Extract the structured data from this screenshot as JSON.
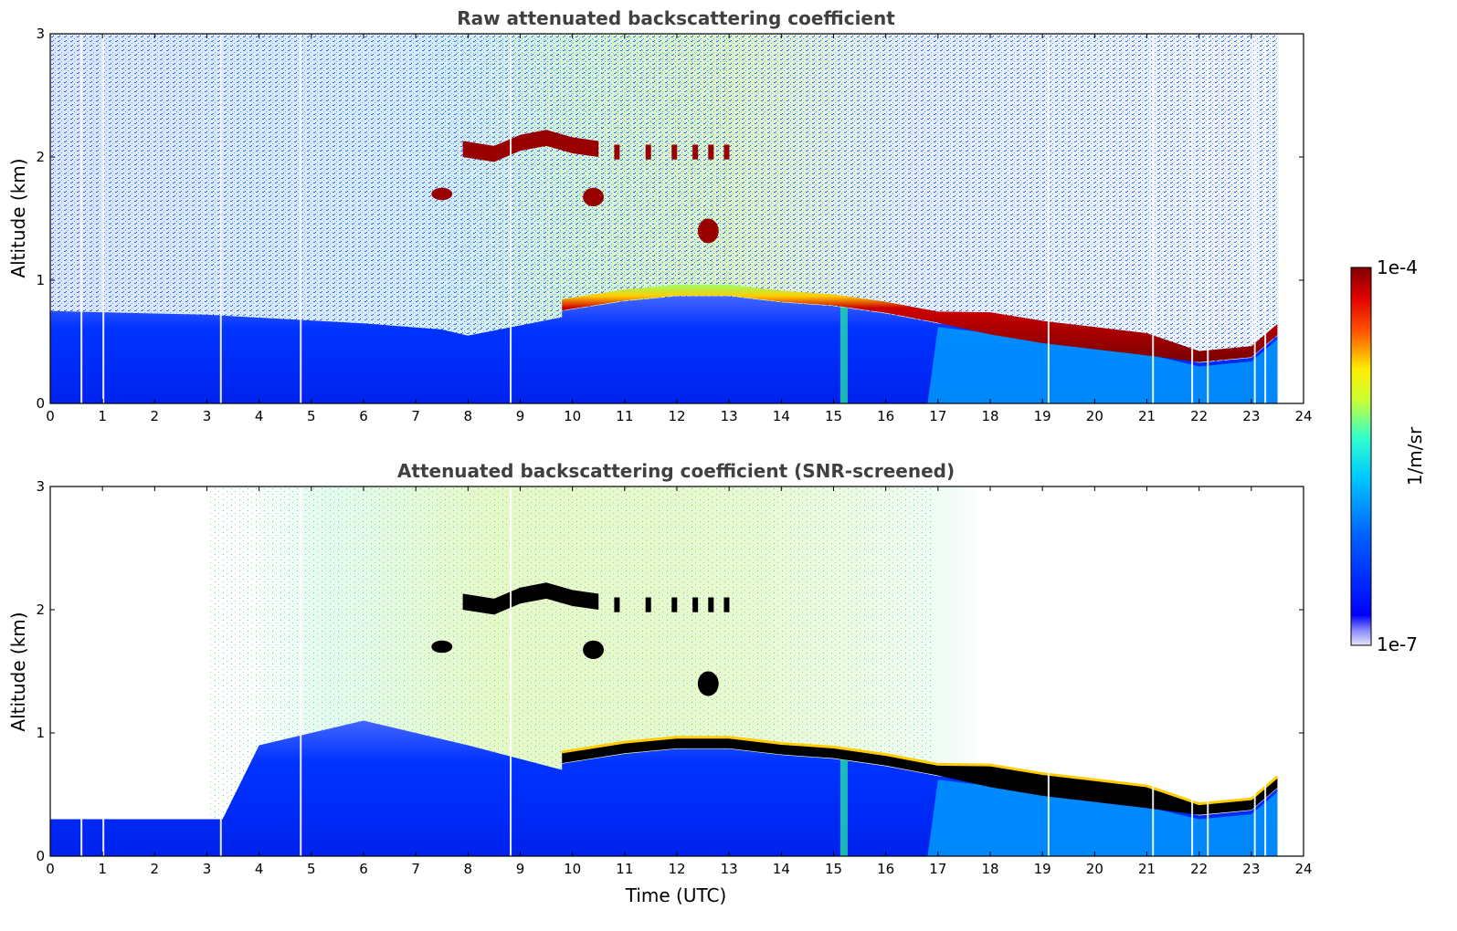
{
  "chart_data": [
    {
      "type": "heatmap",
      "title": "Raw attenuated backscattering coefficient",
      "xlabel": "",
      "ylabel": "Altitude (km)",
      "xlim": [
        0,
        24
      ],
      "ylim": [
        0,
        3
      ],
      "xticks": [
        0,
        1,
        2,
        3,
        4,
        5,
        6,
        7,
        8,
        9,
        10,
        11,
        12,
        13,
        14,
        15,
        16,
        17,
        18,
        19,
        20,
        21,
        22,
        23,
        24
      ],
      "yticks": [
        0,
        1,
        2,
        3
      ],
      "features": {
        "boundary_layer": {
          "x": [
            0,
            3,
            6,
            7.5,
            8
          ],
          "top_km": [
            0.75,
            0.72,
            0.65,
            0.6,
            0.55
          ]
        },
        "cloud_layer_low": {
          "x": [
            9.8,
            11,
            12,
            13,
            14,
            15,
            16,
            17,
            18,
            19,
            20,
            21,
            22,
            23,
            23.5
          ],
          "y_km": [
            0.8,
            0.88,
            0.92,
            0.92,
            0.87,
            0.84,
            0.78,
            0.7,
            0.65,
            0.58,
            0.53,
            0.48,
            0.38,
            0.42,
            0.6
          ]
        },
        "cloud_layer_high": {
          "x": [
            7.9,
            8.5,
            9,
            9.5,
            10,
            10.5
          ],
          "y_km": [
            2.07,
            2.03,
            2.12,
            2.16,
            2.1,
            2.07
          ]
        },
        "cloud_patches": [
          {
            "x": [
              7.3,
              7.7
            ],
            "y_km": [
              1.65,
              1.75
            ]
          },
          {
            "x": [
              10.2,
              10.6
            ],
            "y_km": [
              1.6,
              1.75
            ]
          },
          {
            "x": [
              12.4,
              12.8
            ],
            "y_km": [
              1.3,
              1.5
            ]
          }
        ],
        "plume_x": 15.2
      }
    },
    {
      "type": "heatmap",
      "title": "Attenuated backscattering coefficient (SNR-screened)",
      "xlabel": "Time (UTC)",
      "ylabel": "Altitude (km)",
      "xlim": [
        0,
        24
      ],
      "ylim": [
        0,
        3
      ],
      "xticks": [
        0,
        1,
        2,
        3,
        4,
        5,
        6,
        7,
        8,
        9,
        10,
        11,
        12,
        13,
        14,
        15,
        16,
        17,
        18,
        19,
        20,
        21,
        22,
        23,
        24
      ],
      "yticks": [
        0,
        1,
        2,
        3
      ],
      "features": {
        "screened_boundary_layer": {
          "x": [
            0,
            3.3,
            4,
            6,
            8
          ],
          "top_km": [
            0.3,
            0.3,
            0.9,
            1.1,
            0.9
          ]
        },
        "cloud_layer_low": {
          "x": [
            9.8,
            11,
            12,
            13,
            14,
            15,
            16,
            17,
            18,
            19,
            20,
            21,
            22,
            23,
            23.5
          ],
          "y_km": [
            0.8,
            0.88,
            0.92,
            0.92,
            0.87,
            0.84,
            0.78,
            0.7,
            0.65,
            0.58,
            0.53,
            0.48,
            0.38,
            0.42,
            0.6
          ]
        },
        "cloud_layer_high": {
          "x": [
            7.9,
            8.5,
            9,
            9.5,
            10,
            10.5
          ],
          "y_km": [
            2.07,
            2.03,
            2.12,
            2.16,
            2.1,
            2.07
          ]
        }
      }
    }
  ],
  "colorbar": {
    "label": "1/m/sr",
    "max_label": "1e-4",
    "min_label": "1e-7",
    "colors": [
      "#e8e8f8",
      "#0022ff",
      "#00aaff",
      "#20e8c0",
      "#ffff00",
      "#ff4400",
      "#8b0000"
    ]
  }
}
